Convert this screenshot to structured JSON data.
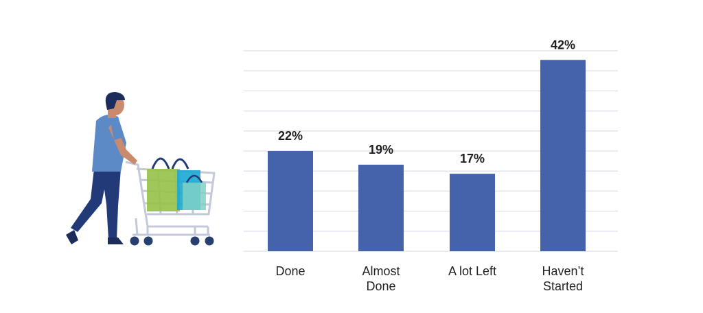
{
  "chart_data": {
    "type": "bar",
    "categories": [
      "Done",
      "Almost Done",
      "A lot Left",
      "Haven’t Started"
    ],
    "category_lines": [
      [
        "Done"
      ],
      [
        "Almost",
        "Done"
      ],
      [
        "A lot Left"
      ],
      [
        "Haven’t",
        "Started"
      ]
    ],
    "values": [
      22,
      19,
      17,
      42
    ],
    "value_labels": [
      "22%",
      "19%",
      "17%",
      "42%"
    ],
    "ylim": [
      0,
      44
    ],
    "grid": true,
    "bar_color": "#4563ab"
  },
  "illustration": {
    "icon": "shopper-pushing-cart-icon",
    "colors": {
      "shirt": "#5b8ac6",
      "pants": "#233a78",
      "skin": "#c98a6e",
      "hair": "#1c2d5c",
      "cart": "#c3c9db",
      "bag_green": "#97c24b",
      "bag_blue": "#1aa8d4",
      "wheel": "#27406f"
    }
  }
}
